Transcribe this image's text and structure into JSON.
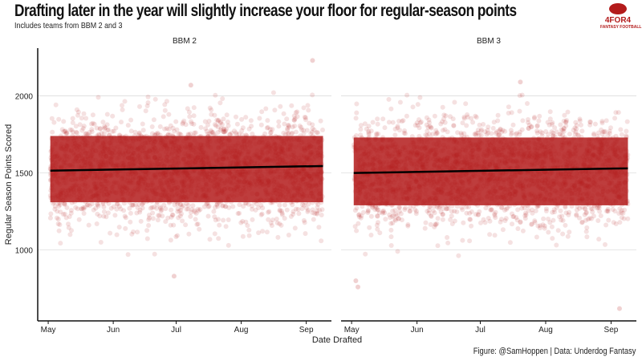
{
  "title": "Drafting later in the year will slightly increase your floor for regular-season points",
  "subtitle": "Includes teams from BBM 2 and 3",
  "caption": "Figure: @SamHoppen | Data: Underdog Fantasy",
  "logo": {
    "brand": "4FOR4",
    "tagline": "FANTASY FOOTBALL",
    "color": "#b31b1b"
  },
  "chart_data": {
    "type": "scatter",
    "xlabel": "Date Drafted",
    "ylabel": "Regular Season Points Scored",
    "ylim": [
      540,
      2310
    ],
    "yticks": [
      1000,
      1500,
      2000
    ],
    "xticks": [
      {
        "label": "May",
        "day": 0
      },
      {
        "label": "Jun",
        "day": 31
      },
      {
        "label": "Jul",
        "day": 61
      },
      {
        "label": "Aug",
        "day": 92
      },
      {
        "label": "Sep",
        "day": 123
      }
    ],
    "xlim_days": [
      -5,
      135
    ],
    "point_color": "#b31b1b",
    "grid": true,
    "panels": [
      {
        "label": "BBM 2",
        "date_range_days": [
          1,
          131
        ],
        "core_band": [
          1250,
          1800
        ],
        "spread_range": [
          950,
          2050
        ],
        "trend": {
          "start": 1515,
          "end": 1545
        },
        "outliers": [
          {
            "day": 126,
            "y": 2230
          },
          {
            "day": 60,
            "y": 830
          },
          {
            "day": 68,
            "y": 2070
          }
        ]
      },
      {
        "label": "BBM 3",
        "date_range_days": [
          1,
          131
        ],
        "core_band": [
          1230,
          1790
        ],
        "spread_range": [
          930,
          2030
        ],
        "trend": {
          "start": 1500,
          "end": 1530
        },
        "outliers": [
          {
            "day": 2,
            "y": 800
          },
          {
            "day": 3,
            "y": 760
          },
          {
            "day": 127,
            "y": 620
          },
          {
            "day": 80,
            "y": 2090
          }
        ]
      }
    ]
  }
}
